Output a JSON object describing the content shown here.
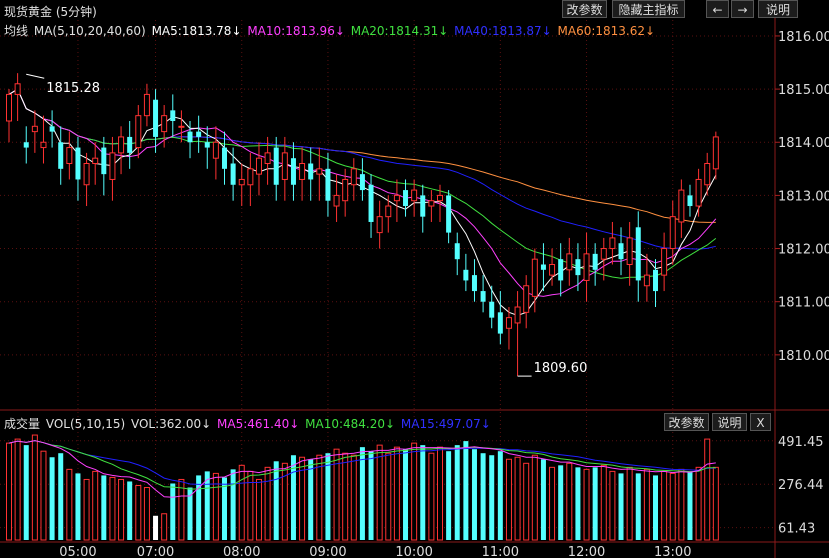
{
  "window_title": "现货黄金 (5分钟)",
  "toolbar": {
    "params": "改参数",
    "hide_indicator": "隐藏主指标",
    "left": "←",
    "right": "→",
    "help": "说明"
  },
  "ma_bar": {
    "label": "均线",
    "params": "MA(5,10,20,40,60)",
    "ma5": "MA5:1813.78↓",
    "ma10": "MA10:1813.96↓",
    "ma20": "MA20:1814.31↓",
    "ma40": "MA40:1813.87↓",
    "ma60": "MA60:1813.62↓"
  },
  "vol_bar": {
    "label": "成交量",
    "params": "VOL(5,10,15)",
    "vol": "VOL:362.00↓",
    "ma5": "MA5:461.40↓",
    "ma10": "MA10:484.20↓",
    "ma15": "MA15:497.07↓",
    "params_btn": "改参数",
    "help_btn": "说明",
    "close_btn": "X"
  },
  "colors": {
    "up": "#ff3232",
    "down": "#54ffff",
    "ma5": "#ffffff",
    "ma10": "#ff40ff",
    "ma20": "#40e040",
    "ma40": "#2020ff",
    "ma60": "#ff9040"
  },
  "chart_data": {
    "type": "candlestick",
    "price_axis": {
      "ticks": [
        "1816.00",
        "1815.00",
        "1814.00",
        "1813.00",
        "1812.00",
        "1811.00",
        "1810.00"
      ],
      "range": [
        1809.0,
        1816.3
      ]
    },
    "volume_axis": {
      "ticks": [
        "491.45",
        "276.44",
        "61.43"
      ],
      "range": [
        0,
        545
      ]
    },
    "time_labels": [
      {
        "label": "05:00",
        "index": 8
      },
      {
        "label": "07:00",
        "index": 17
      },
      {
        "label": "08:00",
        "index": 27
      },
      {
        "label": "09:00",
        "index": 37
      },
      {
        "label": "10:00",
        "index": 47
      },
      {
        "label": "11:00",
        "index": 57
      },
      {
        "label": "12:00",
        "index": 67
      },
      {
        "label": "13:00",
        "index": 77
      }
    ],
    "annotations": [
      {
        "text": "1815.28",
        "index": 2,
        "price": 1815.28,
        "kind": "high"
      },
      {
        "text": "1809.60",
        "index": 59,
        "price": 1809.6,
        "kind": "low"
      }
    ],
    "candles": {
      "open": [
        1814.4,
        1814.9,
        1814.0,
        1814.2,
        1813.9,
        1814.3,
        1814.0,
        1813.6,
        1813.9,
        1813.2,
        1813.6,
        1813.9,
        1813.3,
        1813.8,
        1814.1,
        1813.9,
        1814.5,
        1814.8,
        1814.2,
        1814.6,
        1814.3,
        1814.2,
        1814.2,
        1814.0,
        1813.7,
        1813.9,
        1813.6,
        1813.2,
        1813.2,
        1813.4,
        1813.6,
        1813.9,
        1813.3,
        1813.7,
        1813.3,
        1813.6,
        1813.4,
        1813.5,
        1812.8,
        1812.9,
        1813.2,
        1813.4,
        1813.2,
        1812.3,
        1812.6,
        1812.9,
        1813.1,
        1812.9,
        1813.0,
        1812.8,
        1812.9,
        1813.0,
        1812.1,
        1811.6,
        1811.5,
        1811.2,
        1811.0,
        1810.8,
        1810.5,
        1810.6,
        1810.8,
        1811.1,
        1811.7,
        1811.5,
        1811.8,
        1811.6,
        1811.8,
        1811.4,
        1811.9,
        1811.8,
        1812.0,
        1812.1,
        1811.7,
        1812.4,
        1811.3,
        1811.6,
        1811.5,
        1812.0,
        1812.5,
        1813.0,
        1812.8,
        1813.2,
        1813.5
      ],
      "close": [
        1814.9,
        1815.1,
        1813.9,
        1814.3,
        1814.0,
        1814.2,
        1813.5,
        1813.9,
        1813.3,
        1813.6,
        1813.7,
        1813.4,
        1813.8,
        1814.1,
        1813.8,
        1814.5,
        1814.9,
        1814.1,
        1814.5,
        1814.4,
        1814.3,
        1814.0,
        1814.1,
        1813.9,
        1814.0,
        1813.5,
        1813.2,
        1813.3,
        1813.5,
        1813.7,
        1813.8,
        1813.2,
        1813.8,
        1813.2,
        1813.6,
        1813.3,
        1813.5,
        1812.9,
        1813.0,
        1813.3,
        1813.5,
        1813.1,
        1812.5,
        1812.6,
        1812.8,
        1813.0,
        1812.8,
        1813.1,
        1812.6,
        1812.9,
        1813.0,
        1812.3,
        1811.8,
        1811.4,
        1811.2,
        1811.0,
        1810.7,
        1810.4,
        1810.7,
        1810.9,
        1811.3,
        1811.8,
        1811.6,
        1811.7,
        1811.4,
        1811.9,
        1811.5,
        1811.9,
        1811.6,
        1812.0,
        1812.2,
        1811.8,
        1812.2,
        1811.4,
        1811.5,
        1811.2,
        1812.0,
        1812.6,
        1813.1,
        1812.8,
        1813.3,
        1813.6,
        1814.1
      ],
      "high": [
        1815.0,
        1815.3,
        1814.3,
        1814.6,
        1814.5,
        1814.6,
        1814.3,
        1814.2,
        1814.1,
        1813.8,
        1814.0,
        1814.1,
        1814.1,
        1814.3,
        1814.4,
        1814.7,
        1815.1,
        1815.0,
        1814.7,
        1814.9,
        1814.6,
        1814.4,
        1814.5,
        1814.3,
        1814.3,
        1814.2,
        1813.9,
        1813.6,
        1813.8,
        1814.0,
        1814.1,
        1814.1,
        1814.1,
        1814.0,
        1813.9,
        1813.9,
        1813.9,
        1813.8,
        1813.4,
        1813.5,
        1813.7,
        1813.7,
        1813.4,
        1812.9,
        1813.0,
        1813.3,
        1813.3,
        1813.3,
        1813.2,
        1813.1,
        1813.2,
        1813.1,
        1812.3,
        1811.9,
        1811.8,
        1811.5,
        1811.3,
        1811.2,
        1810.9,
        1811.2,
        1811.5,
        1812.0,
        1812.1,
        1812.0,
        1812.1,
        1812.2,
        1812.1,
        1812.3,
        1812.1,
        1812.2,
        1812.5,
        1812.4,
        1812.5,
        1812.7,
        1811.9,
        1811.8,
        1812.3,
        1812.9,
        1813.3,
        1813.2,
        1813.5,
        1813.8,
        1814.2
      ],
      "low": [
        1814.0,
        1814.4,
        1813.6,
        1813.8,
        1813.6,
        1813.9,
        1813.2,
        1813.3,
        1812.9,
        1812.8,
        1813.2,
        1813.0,
        1812.9,
        1813.4,
        1813.5,
        1813.7,
        1814.3,
        1813.8,
        1813.9,
        1814.1,
        1814.0,
        1813.7,
        1813.8,
        1813.5,
        1813.3,
        1813.2,
        1812.9,
        1812.8,
        1812.8,
        1813.0,
        1813.2,
        1812.9,
        1812.9,
        1812.9,
        1812.9,
        1812.9,
        1812.9,
        1812.6,
        1812.5,
        1812.6,
        1812.9,
        1812.9,
        1812.2,
        1812.0,
        1812.3,
        1812.5,
        1812.6,
        1812.6,
        1812.3,
        1812.5,
        1812.5,
        1812.1,
        1811.5,
        1811.2,
        1811.0,
        1810.8,
        1810.5,
        1810.2,
        1810.1,
        1809.6,
        1810.5,
        1810.8,
        1811.2,
        1811.3,
        1811.1,
        1811.3,
        1811.2,
        1811.0,
        1811.3,
        1811.4,
        1811.7,
        1811.5,
        1811.3,
        1811.0,
        1811.0,
        1810.9,
        1811.2,
        1811.7,
        1812.2,
        1812.6,
        1812.6,
        1813.0,
        1813.3
      ]
    },
    "volumes": [
      480,
      500,
      470,
      520,
      440,
      410,
      430,
      350,
      330,
      300,
      340,
      320,
      310,
      300,
      290,
      270,
      260,
      120,
      130,
      280,
      300,
      260,
      320,
      340,
      330,
      310,
      350,
      370,
      340,
      300,
      360,
      390,
      380,
      420,
      410,
      400,
      420,
      430,
      450,
      430,
      420,
      460,
      440,
      470,
      430,
      460,
      450,
      480,
      470,
      430,
      460,
      440,
      470,
      490,
      450,
      430,
      420,
      440,
      400,
      410,
      380,
      420,
      400,
      360,
      370,
      380,
      360,
      350,
      360,
      370,
      340,
      330,
      360,
      330,
      350,
      320,
      340,
      330,
      350,
      340,
      360,
      500,
      360
    ],
    "volume_highlight": [
      {
        "index": 17,
        "color": "#ffffff"
      }
    ]
  }
}
